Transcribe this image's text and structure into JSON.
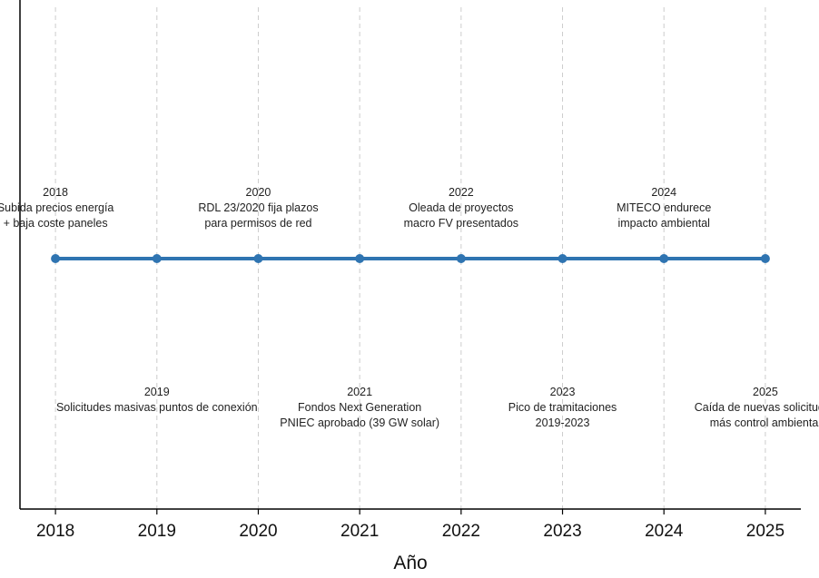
{
  "chart_data": {
    "type": "timeline",
    "title": "",
    "xlabel": "Año",
    "ylabel": "",
    "xlim": [
      2017.65,
      2025.35
    ],
    "grid": true,
    "line_color": "#2f74b1",
    "grid_color": "#cccccc",
    "x": [
      2018,
      2019,
      2020,
      2021,
      2022,
      2023,
      2024,
      2025
    ],
    "events": [
      {
        "year": 2018,
        "label": "2018",
        "lines": [
          "Subida precios energía",
          "+ baja coste paneles"
        ],
        "position": "above"
      },
      {
        "year": 2019,
        "label": "2019",
        "lines": [
          "Solicitudes masivas puntos de conexión"
        ],
        "position": "below"
      },
      {
        "year": 2020,
        "label": "2020",
        "lines": [
          "RDL 23/2020 fija plazos",
          "para permisos de red"
        ],
        "position": "above"
      },
      {
        "year": 2021,
        "label": "2021",
        "lines": [
          "Fondos Next Generation",
          "PNIEC aprobado (39 GW solar)"
        ],
        "position": "below"
      },
      {
        "year": 2022,
        "label": "2022",
        "lines": [
          "Oleada de proyectos",
          "macro FV presentados"
        ],
        "position": "above"
      },
      {
        "year": 2023,
        "label": "2023",
        "lines": [
          "Pico de tramitaciones",
          "2019-2023"
        ],
        "position": "below"
      },
      {
        "year": 2024,
        "label": "2024",
        "lines": [
          "MITECO endurece",
          "impacto ambiental"
        ],
        "position": "above"
      },
      {
        "year": 2025,
        "label": "2025",
        "lines": [
          "Caída de nuevas solicitudes",
          "más control ambiental"
        ],
        "position": "below"
      }
    ],
    "tick_labels": [
      "2018",
      "2019",
      "2020",
      "2021",
      "2022",
      "2023",
      "2024",
      "2025"
    ]
  }
}
